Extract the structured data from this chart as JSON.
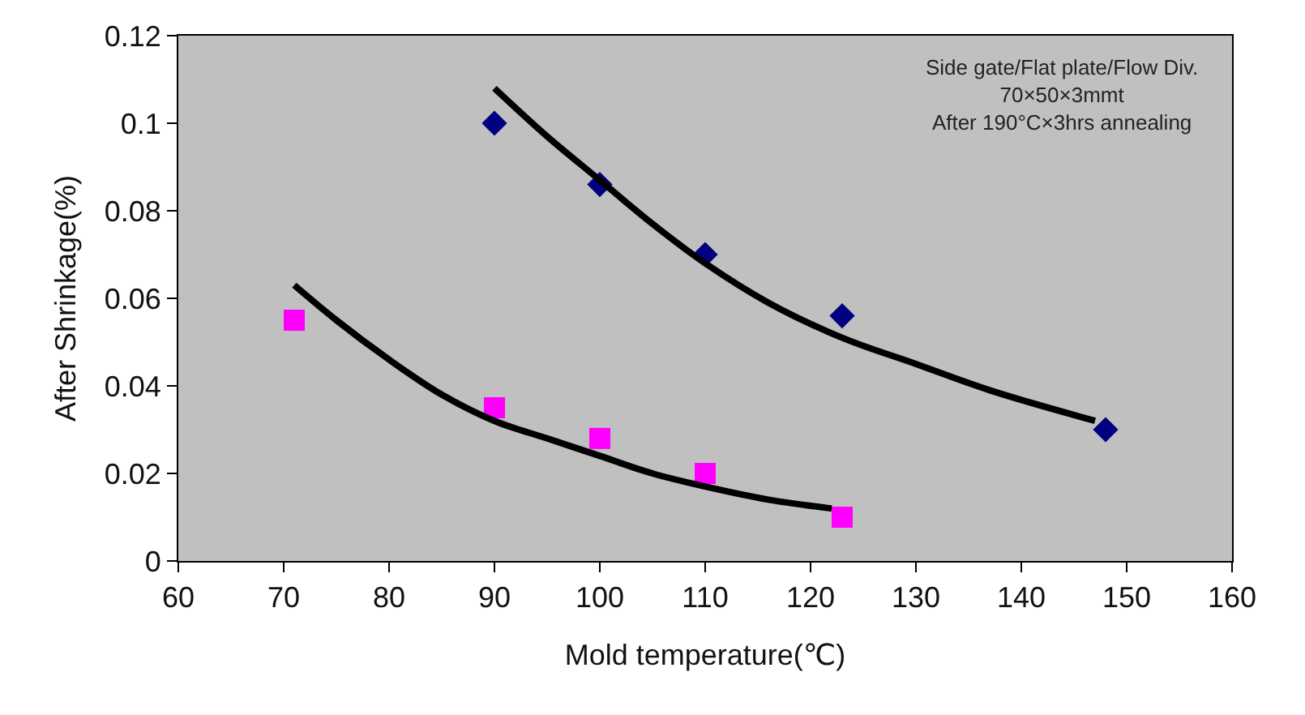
{
  "chart_data": {
    "type": "scatter",
    "xlabel": "Mold temperature(℃)",
    "ylabel": "After Shrinkage(%)",
    "xlim": [
      60,
      160
    ],
    "xticks": [
      60,
      70,
      80,
      90,
      100,
      110,
      120,
      130,
      140,
      150,
      160
    ],
    "ylim": [
      0,
      0.12
    ],
    "yticks": [
      0,
      0.02,
      0.04,
      0.06,
      0.08,
      0.1,
      0.12
    ],
    "grid": false,
    "annotations": [
      "Side gate/Flat plate/Flow Div.\n70×50×3mmt\nAfter 190°C×3hrs annealing"
    ],
    "series": [
      {
        "marker": "diamond",
        "color": "#000080",
        "x": [
          90,
          100,
          110,
          123,
          148
        ],
        "values": [
          0.1,
          0.086,
          0.07,
          0.056,
          0.03
        ]
      },
      {
        "marker": "square",
        "color": "#ff00ff",
        "x": [
          71,
          90,
          100,
          110,
          123
        ],
        "values": [
          0.055,
          0.035,
          0.028,
          0.02,
          0.01
        ]
      },
      {
        "type": "line",
        "marker": "none",
        "color": "#000000",
        "x": [
          90,
          95,
          100,
          105,
          110,
          116,
          123,
          130,
          137,
          147
        ],
        "values": [
          0.108,
          0.097,
          0.087,
          0.077,
          0.068,
          0.059,
          0.051,
          0.045,
          0.039,
          0.032
        ]
      },
      {
        "type": "line",
        "marker": "none",
        "color": "#000000",
        "x": [
          71,
          75,
          80,
          85,
          90,
          95,
          100,
          105,
          110,
          116,
          122
        ],
        "values": [
          0.063,
          0.055,
          0.046,
          0.038,
          0.032,
          0.028,
          0.024,
          0.02,
          0.017,
          0.014,
          0.012
        ]
      }
    ]
  }
}
